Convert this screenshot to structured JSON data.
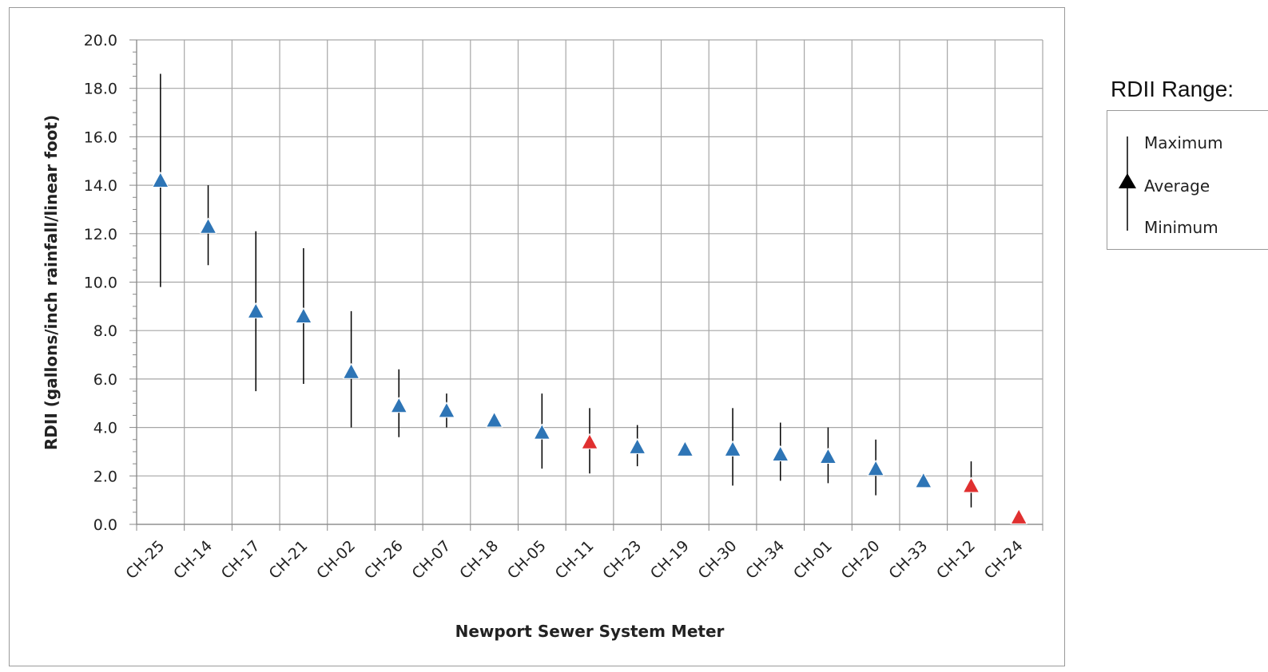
{
  "chart_data": {
    "type": "scatter",
    "xlabel": "Newport Sewer System Meter",
    "ylabel": "RDII (gallons/inch rainfall/linear foot)",
    "ylim": [
      0,
      20
    ],
    "y_ticks": [
      "0.0",
      "2.0",
      "4.0",
      "6.0",
      "8.0",
      "10.0",
      "12.0",
      "14.0",
      "16.0",
      "18.0",
      "20.0"
    ],
    "grid": true,
    "categories": [
      "CH-25",
      "CH-14",
      "CH-17",
      "CH-21",
      "CH-02",
      "CH-26",
      "CH-07",
      "CH-18",
      "CH-05",
      "CH-11",
      "CH-23",
      "CH-19",
      "CH-30",
      "CH-34",
      "CH-01",
      "CH-20",
      "CH-33",
      "CH-12",
      "CH-24"
    ],
    "average": [
      14.2,
      12.3,
      8.8,
      8.6,
      6.3,
      4.9,
      4.7,
      4.3,
      3.8,
      3.4,
      3.2,
      3.1,
      3.1,
      2.9,
      2.8,
      2.3,
      1.8,
      1.6,
      0.3
    ],
    "maximum": [
      18.6,
      14.0,
      12.1,
      11.4,
      8.8,
      6.4,
      5.4,
      null,
      5.4,
      4.8,
      4.1,
      null,
      4.8,
      4.2,
      4.0,
      3.5,
      null,
      2.6,
      null
    ],
    "minimum": [
      9.8,
      10.7,
      5.5,
      5.8,
      4.0,
      3.6,
      4.0,
      null,
      2.3,
      2.1,
      2.4,
      null,
      1.6,
      1.8,
      1.7,
      1.2,
      null,
      0.7,
      null
    ],
    "marker_colors": [
      "#2e75b6",
      "#2e75b6",
      "#2e75b6",
      "#2e75b6",
      "#2e75b6",
      "#2e75b6",
      "#2e75b6",
      "#2e75b6",
      "#2e75b6",
      "#e03030",
      "#2e75b6",
      "#2e75b6",
      "#2e75b6",
      "#2e75b6",
      "#2e75b6",
      "#2e75b6",
      "#2e75b6",
      "#e03030",
      "#e03030"
    ],
    "legend": {
      "title": "RDII Range:",
      "placement": "right",
      "items": [
        "Maximum",
        "Average",
        "Minimum"
      ]
    }
  },
  "colors": {
    "blue_marker": "#2e75b6",
    "red_marker": "#e03030",
    "grid": "#a6a6a6",
    "range_line": "#000000"
  }
}
